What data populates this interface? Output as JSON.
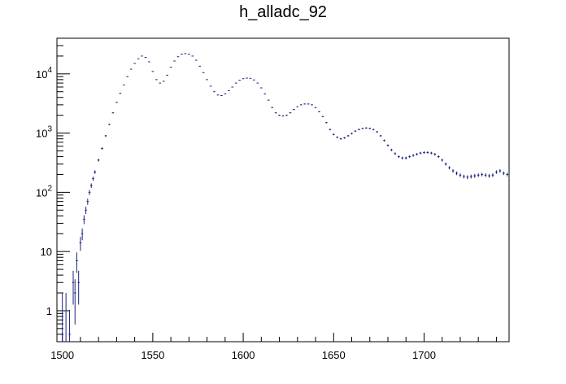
{
  "chart_data": {
    "type": "scatter",
    "title": "h_alladc_92",
    "xlabel": "",
    "ylabel": "",
    "xlim": [
      1497,
      1747
    ],
    "ylim": [
      0.3,
      40000
    ],
    "yscale": "log",
    "grid": false,
    "legend": "none",
    "marker_color": "#1a237e",
    "x_ticks": [
      1500,
      1550,
      1600,
      1650,
      1700
    ],
    "x_tick_labels": [
      "1500",
      "1550",
      "1600",
      "1650",
      "1700"
    ],
    "y_ticks": [
      1,
      10,
      100,
      1000,
      10000
    ],
    "y_tick_labels": [
      "1",
      "10",
      "10^2",
      "10^3",
      "10^4"
    ],
    "series": [
      {
        "points": [
          [
            1500,
            1
          ],
          [
            1502,
            1
          ],
          [
            1504,
            0.4
          ],
          [
            1506,
            3
          ],
          [
            1507,
            2
          ],
          [
            1508,
            7
          ],
          [
            1509,
            3
          ],
          [
            1510,
            14
          ],
          [
            1511,
            20
          ],
          [
            1512,
            35
          ],
          [
            1513,
            50
          ],
          [
            1514,
            70
          ],
          [
            1515,
            100
          ],
          [
            1516,
            130
          ],
          [
            1517,
            170
          ],
          [
            1518,
            220
          ],
          [
            1520,
            350
          ],
          [
            1522,
            550
          ],
          [
            1524,
            900
          ],
          [
            1526,
            1400
          ],
          [
            1528,
            2200
          ],
          [
            1530,
            3300
          ],
          [
            1532,
            4700
          ],
          [
            1534,
            6500
          ],
          [
            1536,
            9000
          ],
          [
            1538,
            12000
          ],
          [
            1540,
            15000
          ],
          [
            1542,
            18000
          ],
          [
            1544,
            20000
          ],
          [
            1546,
            19000
          ],
          [
            1548,
            16000
          ],
          [
            1550,
            11000
          ],
          [
            1552,
            8000
          ],
          [
            1554,
            7000
          ],
          [
            1556,
            7500
          ],
          [
            1558,
            9500
          ],
          [
            1560,
            13000
          ],
          [
            1562,
            16500
          ],
          [
            1564,
            19500
          ],
          [
            1566,
            21500
          ],
          [
            1568,
            22000
          ],
          [
            1570,
            21500
          ],
          [
            1572,
            20000
          ],
          [
            1574,
            17000
          ],
          [
            1576,
            13500
          ],
          [
            1578,
            10500
          ],
          [
            1580,
            8000
          ],
          [
            1582,
            6200
          ],
          [
            1584,
            5000
          ],
          [
            1586,
            4400
          ],
          [
            1588,
            4300
          ],
          [
            1590,
            4600
          ],
          [
            1592,
            5200
          ],
          [
            1594,
            6000
          ],
          [
            1596,
            7000
          ],
          [
            1598,
            7800
          ],
          [
            1600,
            8300
          ],
          [
            1602,
            8500
          ],
          [
            1604,
            8400
          ],
          [
            1606,
            7900
          ],
          [
            1608,
            7000
          ],
          [
            1610,
            5800
          ],
          [
            1612,
            4600
          ],
          [
            1614,
            3600
          ],
          [
            1616,
            2700
          ],
          [
            1618,
            2200
          ],
          [
            1620,
            2000
          ],
          [
            1622,
            1950
          ],
          [
            1624,
            2000
          ],
          [
            1626,
            2200
          ],
          [
            1628,
            2500
          ],
          [
            1630,
            2800
          ],
          [
            1632,
            3000
          ],
          [
            1634,
            3100
          ],
          [
            1636,
            3100
          ],
          [
            1638,
            3000
          ],
          [
            1640,
            2700
          ],
          [
            1642,
            2300
          ],
          [
            1644,
            1900
          ],
          [
            1646,
            1500
          ],
          [
            1648,
            1150
          ],
          [
            1650,
            950
          ],
          [
            1652,
            850
          ],
          [
            1654,
            800
          ],
          [
            1656,
            830
          ],
          [
            1658,
            900
          ],
          [
            1660,
            980
          ],
          [
            1662,
            1080
          ],
          [
            1664,
            1150
          ],
          [
            1666,
            1200
          ],
          [
            1668,
            1220
          ],
          [
            1670,
            1200
          ],
          [
            1672,
            1150
          ],
          [
            1674,
            1050
          ],
          [
            1676,
            900
          ],
          [
            1678,
            750
          ],
          [
            1680,
            620
          ],
          [
            1682,
            520
          ],
          [
            1684,
            450
          ],
          [
            1686,
            400
          ],
          [
            1688,
            380
          ],
          [
            1690,
            380
          ],
          [
            1692,
            400
          ],
          [
            1694,
            420
          ],
          [
            1696,
            440
          ],
          [
            1698,
            460
          ],
          [
            1700,
            470
          ],
          [
            1702,
            470
          ],
          [
            1704,
            460
          ],
          [
            1706,
            440
          ],
          [
            1708,
            400
          ],
          [
            1710,
            350
          ],
          [
            1712,
            300
          ],
          [
            1714,
            260
          ],
          [
            1716,
            230
          ],
          [
            1718,
            210
          ],
          [
            1720,
            195
          ],
          [
            1722,
            185
          ],
          [
            1724,
            180
          ],
          [
            1726,
            185
          ],
          [
            1728,
            190
          ],
          [
            1730,
            195
          ],
          [
            1732,
            200
          ],
          [
            1734,
            195
          ],
          [
            1736,
            190
          ],
          [
            1738,
            195
          ],
          [
            1740,
            220
          ],
          [
            1742,
            230
          ],
          [
            1744,
            210
          ],
          [
            1746,
            200
          ]
        ]
      }
    ]
  }
}
